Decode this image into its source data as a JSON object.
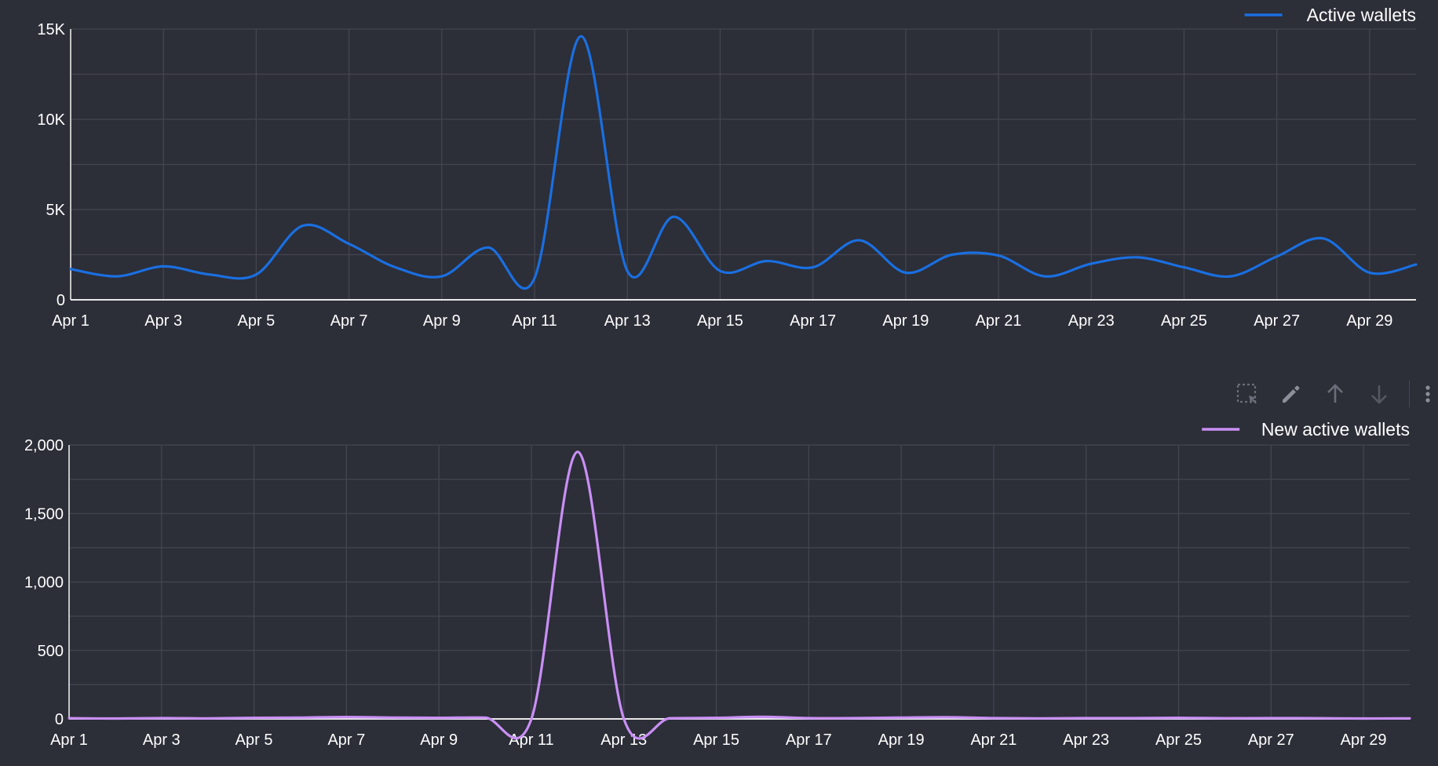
{
  "colors": {
    "background": "#2c2e38",
    "grid": "#43464f",
    "axis": "#e8e8e8",
    "active_wallets": "#1a6fe0",
    "new_active_wallets": "#c98ff5",
    "toolbar_icon": "#6b6e78",
    "toolbar_icon_light": "#8c8f99"
  },
  "toolbar": {
    "icons": [
      "select-area-icon",
      "pencil-icon",
      "arrow-up-icon",
      "arrow-down-icon",
      "more-vertical-icon"
    ]
  },
  "chart_data": [
    {
      "type": "line",
      "x": [
        "Apr 1",
        "Apr 2",
        "Apr 3",
        "Apr 4",
        "Apr 5",
        "Apr 6",
        "Apr 7",
        "Apr 8",
        "Apr 9",
        "Apr 10",
        "Apr 11",
        "Apr 12",
        "Apr 13",
        "Apr 14",
        "Apr 15",
        "Apr 16",
        "Apr 17",
        "Apr 18",
        "Apr 19",
        "Apr 20",
        "Apr 21",
        "Apr 22",
        "Apr 23",
        "Apr 24",
        "Apr 25",
        "Apr 26",
        "Apr 27",
        "Apr 28",
        "Apr 29",
        "Apr 30"
      ],
      "x_tick_labels": [
        "Apr 1",
        "Apr 3",
        "Apr 5",
        "Apr 7",
        "Apr 9",
        "Apr 11",
        "Apr 13",
        "Apr 15",
        "Apr 17",
        "Apr 19",
        "Apr 21",
        "Apr 23",
        "Apr 25",
        "Apr 27",
        "Apr 29"
      ],
      "series": [
        {
          "name": "Active wallets",
          "values": [
            1700,
            1300,
            1850,
            1400,
            1400,
            4100,
            3100,
            1800,
            1300,
            2900,
            1200,
            14600,
            1600,
            4600,
            1600,
            2150,
            1800,
            3300,
            1500,
            2500,
            2450,
            1300,
            2000,
            2350,
            1800,
            1300,
            2400,
            3400,
            1500,
            1950
          ]
        }
      ],
      "y_ticks": [
        "0",
        "5K",
        "10K",
        "15K"
      ],
      "ylim": [
        0,
        15000
      ],
      "legend": "top-right",
      "grid": true
    },
    {
      "type": "line",
      "x": [
        "Apr 1",
        "Apr 2",
        "Apr 3",
        "Apr 4",
        "Apr 5",
        "Apr 6",
        "Apr 7",
        "Apr 8",
        "Apr 9",
        "Apr 10",
        "Apr 11",
        "Apr 12",
        "Apr 13",
        "Apr 14",
        "Apr 15",
        "Apr 16",
        "Apr 17",
        "Apr 18",
        "Apr 19",
        "Apr 20",
        "Apr 21",
        "Apr 22",
        "Apr 23",
        "Apr 24",
        "Apr 25",
        "Apr 26",
        "Apr 27",
        "Apr 28",
        "Apr 29",
        "Apr 30"
      ],
      "x_tick_labels": [
        "Apr 1",
        "Apr 3",
        "Apr 5",
        "Apr 7",
        "Apr 9",
        "Apr 11",
        "Apr 13",
        "Apr 15",
        "Apr 17",
        "Apr 19",
        "Apr 21",
        "Apr 23",
        "Apr 25",
        "Apr 27",
        "Apr 29"
      ],
      "series": [
        {
          "name": "New active wallets",
          "values": [
            5,
            3,
            6,
            4,
            8,
            10,
            14,
            10,
            8,
            10,
            0,
            1950,
            0,
            5,
            8,
            15,
            6,
            6,
            10,
            12,
            6,
            4,
            6,
            6,
            8,
            5,
            6,
            5,
            3,
            4
          ]
        }
      ],
      "y_ticks": [
        "0",
        "500",
        "1,000",
        "1,500",
        "2,000"
      ],
      "ylim": [
        0,
        2000
      ],
      "legend": "top-right",
      "grid": true
    }
  ]
}
